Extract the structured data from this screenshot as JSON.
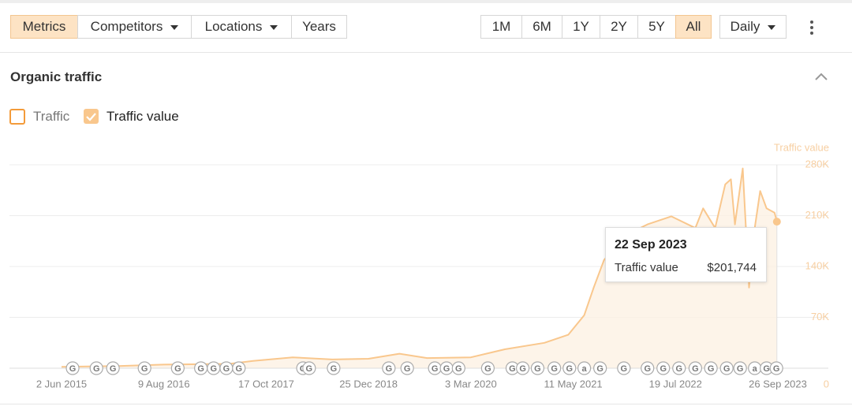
{
  "toolbar": {
    "left": [
      "Metrics",
      "Competitors",
      "Locations",
      "Years"
    ],
    "ranges": [
      "1M",
      "6M",
      "1Y",
      "2Y",
      "5Y",
      "All"
    ],
    "interval": "Daily"
  },
  "section_title": "Organic traffic",
  "toggles": [
    {
      "label": "Traffic",
      "checked": false
    }
  ],
  "tooltip": {
    "date": "22 Sep 2023",
    "value_label": "$201,744"
  },
  "chart_data": {
    "type": "line",
    "y_label": "Traffic value",
    "x": [
      "2 Jun 2015",
      "29 Jan 2016",
      "9 Aug 2016",
      "13 May 2017",
      "22 Aug 2017",
      "6 Feb 2018",
      "24 Jul 2018",
      "25 Dec 2018",
      "5 May 2019",
      "30 Aug 2019",
      "3 Mar 2020",
      "25 Jul 2020",
      "9 Jan 2021",
      "20 Apr 2021",
      "27 Jun 2021",
      "6 Aug 2021",
      "19 Sep 2021",
      "12 Dec 2021",
      "22 Mar 2022",
      "1 Jul 2022",
      "11 Oct 2022",
      "13 Nov 2022",
      "3 Jan 2023",
      "15 Feb 2023",
      "11 Mar 2023",
      "28 Mar 2023",
      "30 Apr 2023",
      "27 May 2023",
      "20 Jun 2023",
      "13 Jul 2023",
      "9 Aug 2023",
      "12 Sep 2023",
      "22 Sep 2023"
    ],
    "series": [
      {
        "name": "Traffic value",
        "color": "#f9c78d",
        "values": [
          2000,
          3000,
          5000,
          6000,
          10000,
          15000,
          12000,
          13000,
          20000,
          14000,
          15000,
          26000,
          35000,
          46000,
          73000,
          111000,
          149000,
          182000,
          198000,
          209000,
          193000,
          220000,
          193000,
          253000,
          260000,
          198000,
          275000,
          111000,
          193000,
          244000,
          220000,
          214000,
          201744
        ]
      }
    ],
    "xlim": [
      "2 Jun 2015",
      "26 Sep 2023"
    ],
    "xticks": [
      "2 Jun 2015",
      "9 Aug 2016",
      "17 Oct 2017",
      "25 Dec 2018",
      "3 Mar 2020",
      "11 May 2021",
      "19 Jul 2022",
      "26 Sep 2023"
    ],
    "ylim": [
      0,
      280000
    ],
    "yticks": [
      0,
      {
        "value": 70000,
        "label": "70K"
      },
      {
        "value": 140000,
        "label": "140K"
      },
      {
        "value": 210000,
        "label": "210K"
      },
      {
        "value": 280000,
        "label": "280K"
      }
    ],
    "grid": true,
    "annotations": [
      {
        "date": "19 Jul 2015",
        "label": "G"
      },
      {
        "date": "28 Oct 2015",
        "label": "G"
      },
      {
        "date": "6 Jan 2016",
        "label": "G"
      },
      {
        "date": "19 May 2016",
        "label": "G"
      },
      {
        "date": "7 Oct 2016",
        "label": "G"
      },
      {
        "date": "13 Jan 2017",
        "label": "G"
      },
      {
        "date": "8 Mar 2017",
        "label": "G"
      },
      {
        "date": "1 May 2017",
        "label": "G"
      },
      {
        "date": "23 Jun 2017",
        "label": "G"
      },
      {
        "date": "22 Mar 2018",
        "label": "G"
      },
      {
        "date": "17 Apr 2018",
        "label": "G"
      },
      {
        "date": "30 Jul 2018",
        "label": "G"
      },
      {
        "date": "21 Mar 2019",
        "label": "G"
      },
      {
        "date": "7 Jun 2019",
        "label": "G"
      },
      {
        "date": "2 Oct 2019",
        "label": "G"
      },
      {
        "date": "21 Nov 2019",
        "label": "G"
      },
      {
        "date": "11 Jan 2020",
        "label": "G"
      },
      {
        "date": "14 May 2020",
        "label": "G"
      },
      {
        "date": "26 Aug 2020",
        "label": "G"
      },
      {
        "date": "9 Oct 2020",
        "label": "G"
      },
      {
        "date": "11 Dec 2020",
        "label": "G"
      },
      {
        "date": "20 Feb 2021",
        "label": "G"
      },
      {
        "date": "25 Apr 2021",
        "label": "G"
      },
      {
        "date": "27 Jun 2021",
        "label": "a"
      },
      {
        "date": "2 Sep 2021",
        "label": "G"
      },
      {
        "date": "12 Dec 2021",
        "label": "G"
      },
      {
        "date": "22 Mar 2022",
        "label": "G"
      },
      {
        "date": "28 May 2022",
        "label": "G"
      },
      {
        "date": "3 Aug 2022",
        "label": "G"
      },
      {
        "date": "11 Oct 2022",
        "label": "G"
      },
      {
        "date": "16 Dec 2022",
        "label": "G"
      },
      {
        "date": "21 Feb 2023",
        "label": "G"
      },
      {
        "date": "19 Apr 2023",
        "label": "G"
      },
      {
        "date": "20 Jun 2023",
        "label": "a"
      },
      {
        "date": "9 Aug 2023",
        "label": "G"
      },
      {
        "date": "20 Sep 2023",
        "label": "G"
      }
    ]
  }
}
